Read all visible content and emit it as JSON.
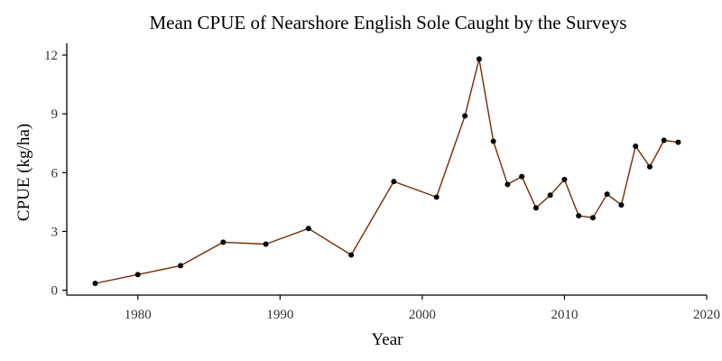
{
  "chart_data": {
    "type": "line",
    "title": "Mean CPUE of Nearshore English Sole Caught by the Surveys",
    "xlabel": "Year",
    "ylabel": "CPUE (kg/ha)",
    "xlim": [
      1975,
      2020
    ],
    "ylim": [
      0,
      12
    ],
    "xticks": [
      1980,
      1990,
      2000,
      2010,
      2020
    ],
    "yticks": [
      0,
      3,
      6,
      9,
      12
    ],
    "grid": false,
    "legend": "none",
    "line_color": "#7a2a00",
    "point_color": "#000000",
    "series": [
      {
        "x": [
          1977,
          1980,
          1983,
          1986,
          1989,
          1992,
          1995,
          1998,
          2001,
          2003,
          2004,
          2005,
          2006,
          2007,
          2008,
          2009,
          2010,
          2011,
          2012,
          2013,
          2014,
          2015,
          2016,
          2017,
          2018
        ],
        "y": [
          0.35,
          0.8,
          1.25,
          2.45,
          2.35,
          3.15,
          1.8,
          5.55,
          4.75,
          8.9,
          11.8,
          7.6,
          5.4,
          5.8,
          4.2,
          4.85,
          5.65,
          3.8,
          3.7,
          4.9,
          4.35,
          7.35,
          6.3,
          7.65,
          7.55
        ]
      }
    ]
  }
}
